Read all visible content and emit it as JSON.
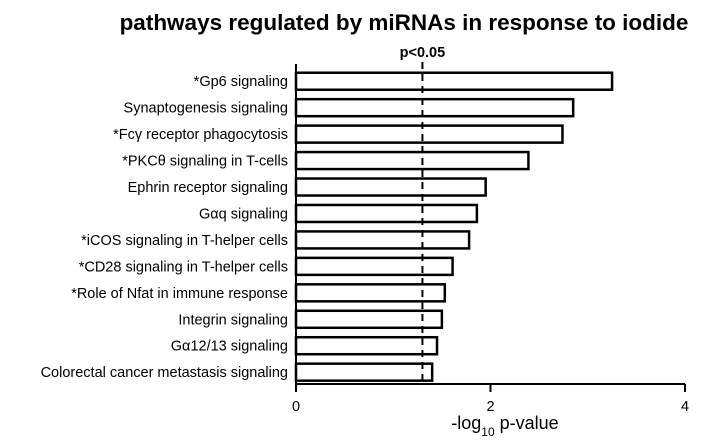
{
  "chart_data": {
    "type": "bar",
    "orientation": "horizontal",
    "title": "pathways regulated by miRNAs in response to iodide",
    "xlabel": "-log10 p-value",
    "xlabel_parts": {
      "prefix": "-log",
      "subscript": "10",
      "suffix": " p-value"
    },
    "ylabel": "",
    "xlim": [
      0,
      4
    ],
    "xticks": [
      0,
      2,
      4
    ],
    "grid": false,
    "categories": [
      "*Gp6 signaling",
      "Synaptogenesis signaling",
      "*Fcγ receptor phagocytosis",
      "*PKCθ signaling in T-cells",
      "Ephrin receptor signaling",
      "Gαq signaling",
      "*iCOS signaling in T-helper cells",
      "*CD28 signaling in T-helper cells",
      "*Role of Nfat in immune response",
      "Integrin signaling",
      "Gα12/13 signaling",
      "Colorectal cancer metastasis signaling"
    ],
    "values": [
      3.25,
      2.85,
      2.74,
      2.39,
      1.95,
      1.86,
      1.78,
      1.61,
      1.53,
      1.5,
      1.45,
      1.4
    ],
    "threshold": {
      "value": 1.3,
      "label": "p<0.05",
      "style": "dashed"
    },
    "bar_fill": "#ffffff",
    "bar_stroke": "#000000"
  }
}
